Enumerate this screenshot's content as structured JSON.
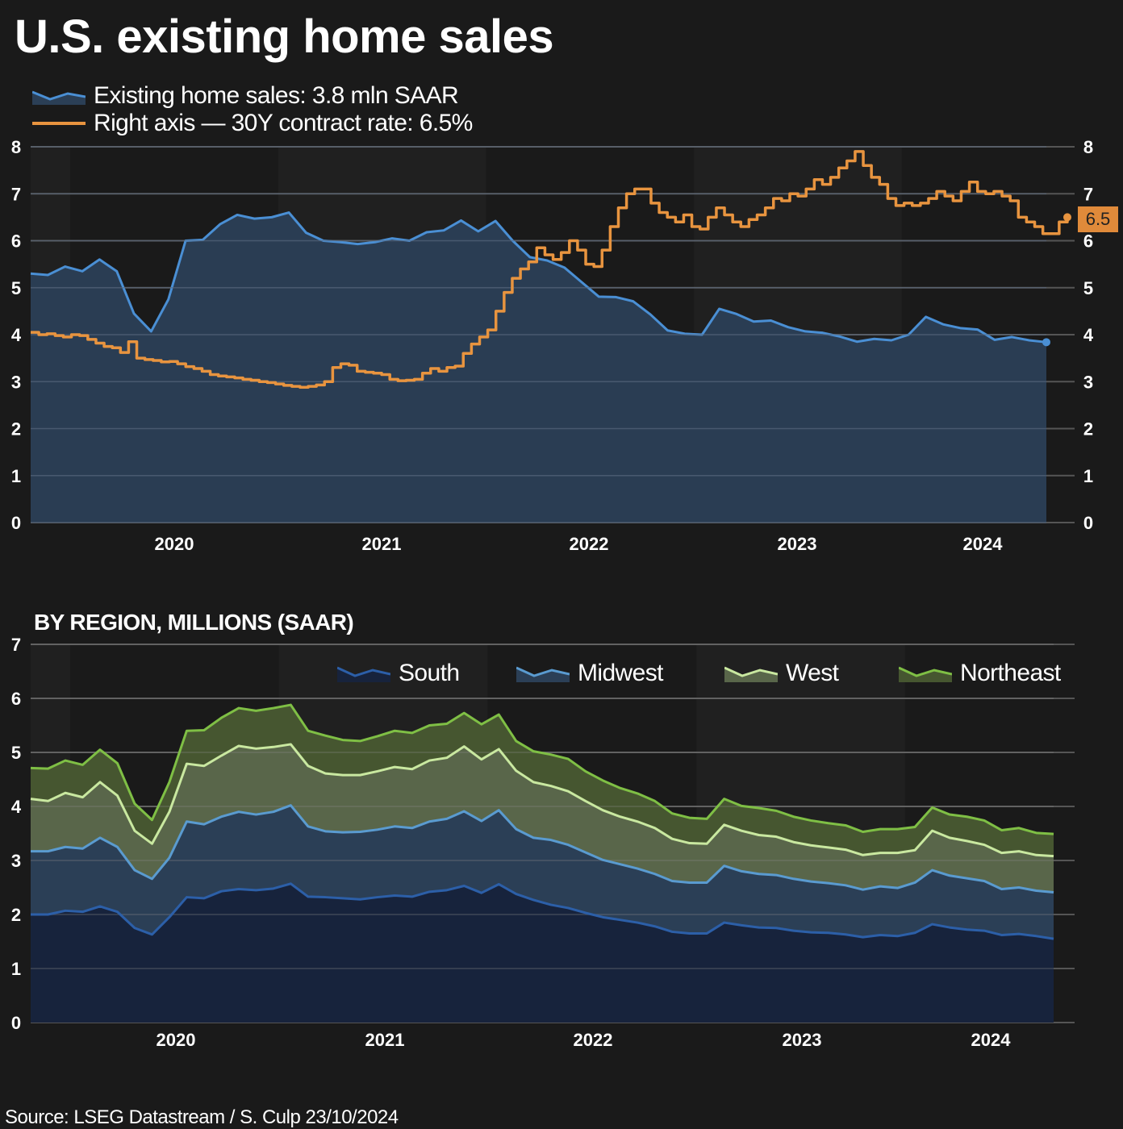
{
  "title": "U.S. existing home sales",
  "source": "Source: LSEG Datastream / S. Culp 23/10/2024",
  "colors": {
    "background": "#1a1a1a",
    "band_light": "#202020",
    "gridline": "#555555",
    "sales_line": "#4a8fd4",
    "sales_fill": "#2b3f56",
    "rate_line": "#e8943f",
    "south_line": "#2c5fa8",
    "south_fill": "#17233c",
    "midwest_line": "#5a9bd0",
    "midwest_fill": "#2b3f56",
    "west_line": "#c9e8a0",
    "west_fill": "#59664a",
    "northeast_line": "#7fbf45",
    "northeast_fill": "#465630"
  },
  "chart_data": [
    {
      "type": "area",
      "title": "U.S. existing home sales",
      "legend": [
        {
          "name": "Existing home sales: 3.8 mln SAAR",
          "kind": "area",
          "axis": "left"
        },
        {
          "name": "Right axis — 30Y contract rate: 6.5%",
          "kind": "line",
          "axis": "right"
        }
      ],
      "legend_position": "top-left",
      "x_tick_labels": [
        "2020",
        "2021",
        "2022",
        "2023",
        "2024"
      ],
      "y_ticks_left": [
        0,
        1,
        2,
        3,
        4,
        5,
        6,
        7,
        8
      ],
      "y_ticks_right": [
        0,
        1,
        2,
        3,
        4,
        5,
        6,
        7,
        8
      ],
      "ylim": [
        0,
        8
      ],
      "grid": true,
      "x_start": "2019-10",
      "x_end": "2024-10",
      "last_value_label": "6.5",
      "series": [
        {
          "name": "Existing home sales (mln SAAR)",
          "frequency": "monthly",
          "start": "2019-10",
          "values": [
            5.3,
            5.27,
            5.45,
            5.35,
            5.6,
            5.35,
            4.45,
            4.07,
            4.75,
            6.0,
            6.02,
            6.35,
            6.55,
            6.47,
            6.5,
            6.6,
            6.17,
            6.0,
            5.97,
            5.93,
            5.97,
            6.05,
            6.0,
            6.18,
            6.22,
            6.43,
            6.2,
            6.42,
            6.0,
            5.65,
            5.58,
            5.43,
            5.12,
            4.81,
            4.8,
            4.71,
            4.43,
            4.09,
            4.02,
            4.0,
            4.55,
            4.44,
            4.28,
            4.3,
            4.16,
            4.07,
            4.04,
            3.96,
            3.85,
            3.91,
            3.88,
            4.0,
            4.38,
            4.22,
            4.14,
            4.11,
            3.89,
            3.95,
            3.88,
            3.84
          ]
        },
        {
          "name": "30Y contract rate (%)",
          "frequency": "semi-monthly",
          "start": "2019-10",
          "values": [
            4.05,
            4.0,
            4.02,
            3.98,
            3.95,
            4.0,
            3.98,
            3.9,
            3.82,
            3.75,
            3.72,
            3.62,
            3.85,
            3.5,
            3.47,
            3.45,
            3.42,
            3.43,
            3.38,
            3.32,
            3.28,
            3.22,
            3.15,
            3.12,
            3.1,
            3.08,
            3.05,
            3.03,
            3.0,
            2.98,
            2.95,
            2.92,
            2.9,
            2.88,
            2.9,
            2.93,
            3.0,
            3.3,
            3.38,
            3.35,
            3.22,
            3.2,
            3.18,
            3.15,
            3.05,
            3.02,
            3.03,
            3.05,
            3.18,
            3.28,
            3.22,
            3.3,
            3.33,
            3.6,
            3.8,
            3.95,
            4.1,
            4.5,
            4.9,
            5.2,
            5.4,
            5.55,
            5.85,
            5.7,
            5.6,
            5.75,
            6.0,
            5.8,
            5.5,
            5.45,
            5.8,
            6.3,
            6.7,
            7.0,
            7.1,
            7.1,
            6.8,
            6.6,
            6.5,
            6.4,
            6.55,
            6.3,
            6.25,
            6.5,
            6.7,
            6.55,
            6.4,
            6.3,
            6.45,
            6.55,
            6.7,
            6.9,
            6.85,
            7.0,
            6.95,
            7.1,
            7.3,
            7.2,
            7.35,
            7.55,
            7.7,
            7.9,
            7.6,
            7.35,
            7.2,
            6.9,
            6.75,
            6.8,
            6.75,
            6.8,
            6.9,
            7.05,
            6.95,
            6.85,
            7.05,
            7.25,
            7.05,
            7.0,
            7.05,
            6.95,
            6.85,
            6.5,
            6.4,
            6.3,
            6.15,
            6.15,
            6.4,
            6.5
          ]
        }
      ]
    },
    {
      "type": "area",
      "stacked": true,
      "title": "BY REGION, MILLIONS (SAAR)",
      "legend": [
        "South",
        "Midwest",
        "West",
        "Northeast"
      ],
      "legend_position": "top-right",
      "x_tick_labels": [
        "2020",
        "2021",
        "2022",
        "2023",
        "2024"
      ],
      "y_ticks": [
        0,
        1,
        2,
        3,
        4,
        5,
        6,
        7
      ],
      "ylim": [
        0,
        7
      ],
      "grid": true,
      "x_start": "2019-10",
      "series": [
        {
          "name": "South",
          "values": [
            2.0,
            2.0,
            2.07,
            2.05,
            2.15,
            2.05,
            1.75,
            1.63,
            1.95,
            2.32,
            2.3,
            2.43,
            2.47,
            2.45,
            2.48,
            2.57,
            2.33,
            2.32,
            2.3,
            2.28,
            2.32,
            2.35,
            2.33,
            2.42,
            2.45,
            2.53,
            2.4,
            2.56,
            2.38,
            2.27,
            2.18,
            2.12,
            2.03,
            1.95,
            1.9,
            1.85,
            1.78,
            1.68,
            1.65,
            1.65,
            1.85,
            1.8,
            1.76,
            1.75,
            1.7,
            1.67,
            1.66,
            1.63,
            1.58,
            1.62,
            1.6,
            1.66,
            1.82,
            1.76,
            1.72,
            1.7,
            1.62,
            1.64,
            1.6,
            1.55
          ]
        },
        {
          "name": "Midwest",
          "values": [
            1.17,
            1.17,
            1.18,
            1.17,
            1.27,
            1.2,
            1.07,
            1.03,
            1.1,
            1.4,
            1.37,
            1.38,
            1.43,
            1.4,
            1.42,
            1.45,
            1.3,
            1.22,
            1.22,
            1.25,
            1.25,
            1.28,
            1.27,
            1.3,
            1.32,
            1.38,
            1.33,
            1.37,
            1.2,
            1.15,
            1.2,
            1.17,
            1.12,
            1.06,
            1.03,
            1.0,
            0.97,
            0.94,
            0.94,
            0.94,
            1.05,
            1.0,
            0.99,
            0.98,
            0.96,
            0.94,
            0.92,
            0.91,
            0.88,
            0.9,
            0.89,
            0.93,
            1.0,
            0.96,
            0.95,
            0.92,
            0.85,
            0.86,
            0.84,
            0.86
          ]
        },
        {
          "name": "West",
          "values": [
            0.97,
            0.93,
            1.0,
            0.95,
            1.03,
            0.95,
            0.73,
            0.65,
            0.85,
            1.07,
            1.08,
            1.13,
            1.22,
            1.22,
            1.2,
            1.13,
            1.12,
            1.07,
            1.06,
            1.05,
            1.08,
            1.1,
            1.09,
            1.13,
            1.13,
            1.2,
            1.14,
            1.13,
            1.08,
            1.03,
            1.0,
            0.99,
            0.95,
            0.92,
            0.88,
            0.87,
            0.85,
            0.78,
            0.73,
            0.72,
            0.76,
            0.75,
            0.72,
            0.71,
            0.68,
            0.67,
            0.66,
            0.66,
            0.64,
            0.62,
            0.65,
            0.6,
            0.73,
            0.7,
            0.69,
            0.67,
            0.67,
            0.67,
            0.66,
            0.67
          ]
        },
        {
          "name": "Northeast",
          "values": [
            0.57,
            0.6,
            0.6,
            0.6,
            0.6,
            0.6,
            0.5,
            0.44,
            0.55,
            0.61,
            0.66,
            0.7,
            0.7,
            0.7,
            0.72,
            0.73,
            0.65,
            0.7,
            0.65,
            0.63,
            0.65,
            0.67,
            0.67,
            0.65,
            0.63,
            0.62,
            0.65,
            0.64,
            0.55,
            0.57,
            0.58,
            0.6,
            0.55,
            0.55,
            0.53,
            0.52,
            0.5,
            0.47,
            0.47,
            0.46,
            0.48,
            0.46,
            0.5,
            0.48,
            0.47,
            0.46,
            0.45,
            0.45,
            0.43,
            0.44,
            0.44,
            0.43,
            0.43,
            0.43,
            0.45,
            0.45,
            0.42,
            0.43,
            0.41,
            0.41
          ]
        }
      ]
    }
  ]
}
